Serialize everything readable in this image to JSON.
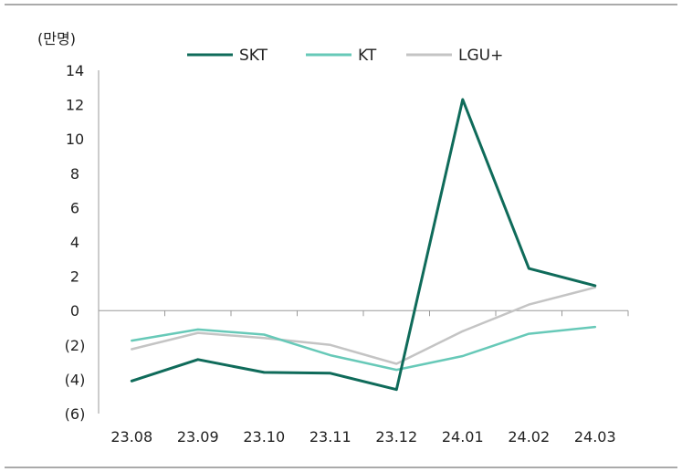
{
  "chart_data": {
    "type": "line",
    "unit_label": "(만명)",
    "categories": [
      "23.08",
      "23.09",
      "23.10",
      "23.11",
      "23.12",
      "24.01",
      "24.02",
      "24.03"
    ],
    "y_tick_labels": [
      "14",
      "12",
      "10",
      "8",
      "6",
      "4",
      "2",
      "0",
      "(2)",
      "(4)",
      "(6)"
    ],
    "ylim": [
      -6,
      14
    ],
    "y_step": 2,
    "grid": false,
    "legend_position": "top",
    "series": [
      {
        "name": "SKT",
        "color": "#0f6b5a",
        "values": [
          -4.1,
          -2.85,
          -3.6,
          -3.65,
          -4.6,
          12.3,
          2.45,
          1.45
        ]
      },
      {
        "name": "KT",
        "color": "#67c9b8",
        "values": [
          -1.75,
          -1.1,
          -1.4,
          -2.6,
          -3.45,
          -2.65,
          -1.35,
          -0.95
        ]
      },
      {
        "name": "LGU+",
        "color": "#c4c4c4",
        "values": [
          -2.25,
          -1.3,
          -1.6,
          -2.0,
          -3.1,
          -1.2,
          0.35,
          1.35
        ]
      }
    ]
  }
}
